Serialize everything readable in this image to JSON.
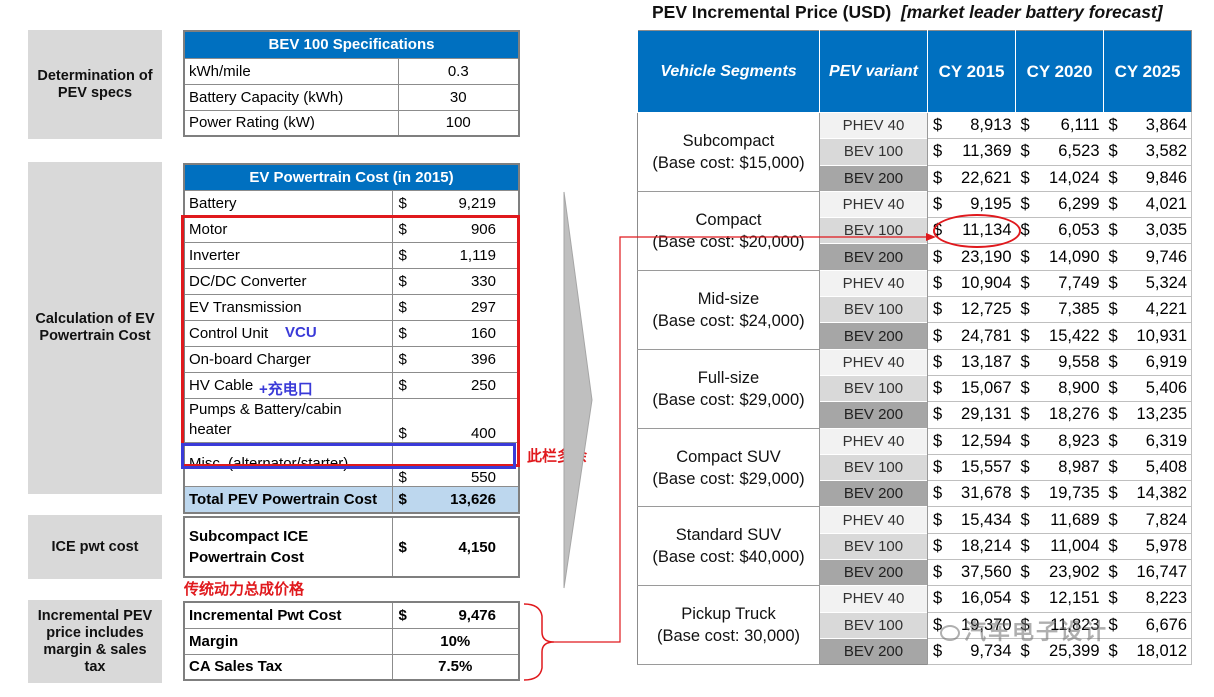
{
  "left_labels": {
    "specs": "Determination of PEV specs",
    "powertrain": "Calculation of EV Powertrain Cost",
    "ice": "ICE pwt cost",
    "incremental": "Incremental PEV price includes margin & sales tax"
  },
  "bev_specs": {
    "title": "BEV 100 Specifications",
    "rows": [
      {
        "label": "kWh/mile",
        "value": "0.3"
      },
      {
        "label": "Battery Capacity (kWh)",
        "value": "30"
      },
      {
        "label": "Power Rating (kW)",
        "value": "100"
      }
    ]
  },
  "ev_cost": {
    "title": "EV Powertrain Cost (in 2015)",
    "currency": "$",
    "rows": [
      {
        "label": "Battery",
        "value": "9,219"
      },
      {
        "label": "Motor",
        "value": "906"
      },
      {
        "label": "Inverter",
        "value": "1,119"
      },
      {
        "label": "DC/DC Converter",
        "value": "330"
      },
      {
        "label": "EV Transmission",
        "value": "297"
      },
      {
        "label": "Control Unit",
        "value": "160"
      },
      {
        "label": "On-board Charger",
        "value": "396"
      },
      {
        "label": "HV Cable",
        "value": "250"
      },
      {
        "label": "Pumps & Battery/cabin heater",
        "value": "400"
      },
      {
        "label": "Misc. (alternator/starter)",
        "value": "550"
      }
    ],
    "total_label": "Total PEV Powertrain Cost",
    "total_value": "13,626"
  },
  "annotations": {
    "vcu": "VCU",
    "charge_port": "+充电口",
    "redundant": "此栏多余",
    "traditional": "传统动力总成价格"
  },
  "ice_cost": {
    "label": "Subcompact ICE Powertrain Cost",
    "currency": "$",
    "value": "4,150"
  },
  "incremental": {
    "rows": [
      {
        "label": "Incremental Pwt Cost",
        "currency": "$",
        "value": "9,476"
      },
      {
        "label": "Margin",
        "currency": "",
        "value": "10%"
      },
      {
        "label": "CA Sales Tax",
        "currency": "",
        "value": "7.5%"
      }
    ]
  },
  "price_table": {
    "title_main": "PEV Incremental Price (USD)",
    "title_note": "[market leader battery forecast]",
    "headers": [
      "Vehicle Segments",
      "PEV variant",
      "CY 2015",
      "CY 2020",
      "CY 2025"
    ],
    "currency": "$",
    "segments": [
      {
        "name": "Subcompact",
        "base": "(Base cost: $15,000)",
        "rows": [
          {
            "variant": "PHEV 40",
            "values": [
              "8,913",
              "6,111",
              "3,864"
            ]
          },
          {
            "variant": "BEV 100",
            "values": [
              "11,369",
              "6,523",
              "3,582"
            ]
          },
          {
            "variant": "BEV 200",
            "values": [
              "22,621",
              "14,024",
              "9,846"
            ]
          }
        ]
      },
      {
        "name": "Compact",
        "base": "(Base cost: $20,000)",
        "rows": [
          {
            "variant": "PHEV 40",
            "values": [
              "9,195",
              "6,299",
              "4,021"
            ]
          },
          {
            "variant": "BEV 100",
            "values": [
              "11,134",
              "6,053",
              "3,035"
            ]
          },
          {
            "variant": "BEV 200",
            "values": [
              "23,190",
              "14,090",
              "9,746"
            ]
          }
        ]
      },
      {
        "name": "Mid-size",
        "base": "(Base cost: $24,000)",
        "rows": [
          {
            "variant": "PHEV 40",
            "values": [
              "10,904",
              "7,749",
              "5,324"
            ]
          },
          {
            "variant": "BEV 100",
            "values": [
              "12,725",
              "7,385",
              "4,221"
            ]
          },
          {
            "variant": "BEV 200",
            "values": [
              "24,781",
              "15,422",
              "10,931"
            ]
          }
        ]
      },
      {
        "name": "Full-size",
        "base": "(Base cost: $29,000)",
        "rows": [
          {
            "variant": "PHEV 40",
            "values": [
              "13,187",
              "9,558",
              "6,919"
            ]
          },
          {
            "variant": "BEV 100",
            "values": [
              "15,067",
              "8,900",
              "5,406"
            ]
          },
          {
            "variant": "BEV 200",
            "values": [
              "29,131",
              "18,276",
              "13,235"
            ]
          }
        ]
      },
      {
        "name": "Compact SUV",
        "base": "(Base cost: $29,000)",
        "rows": [
          {
            "variant": "PHEV 40",
            "values": [
              "12,594",
              "8,923",
              "6,319"
            ]
          },
          {
            "variant": "BEV 100",
            "values": [
              "15,557",
              "8,987",
              "5,408"
            ]
          },
          {
            "variant": "BEV 200",
            "values": [
              "31,678",
              "19,735",
              "14,382"
            ]
          }
        ]
      },
      {
        "name": "Standard SUV",
        "base": "(Base cost: $40,000)",
        "rows": [
          {
            "variant": "PHEV 40",
            "values": [
              "15,434",
              "11,689",
              "7,824"
            ]
          },
          {
            "variant": "BEV 100",
            "values": [
              "18,214",
              "11,004",
              "5,978"
            ]
          },
          {
            "variant": "BEV 200",
            "values": [
              "37,560",
              "23,902",
              "16,747"
            ]
          }
        ]
      },
      {
        "name": "Pickup Truck",
        "base": "(Base cost: 30,000)",
        "rows": [
          {
            "variant": "PHEV 40",
            "values": [
              "16,054",
              "12,151",
              "8,223"
            ]
          },
          {
            "variant": "BEV 100",
            "values": [
              "19,370",
              "11,823",
              "6,676"
            ]
          },
          {
            "variant": "BEV 200",
            "values": [
              "9,734",
              "25,399",
              "18,012"
            ]
          }
        ]
      }
    ]
  },
  "watermark": "汽车电子设计",
  "colors": {
    "header_blue": "#0070c0",
    "total_light_blue": "#bdd7ee",
    "annotation_red": "#e0191d",
    "annotation_blue": "#3a3ad8"
  }
}
